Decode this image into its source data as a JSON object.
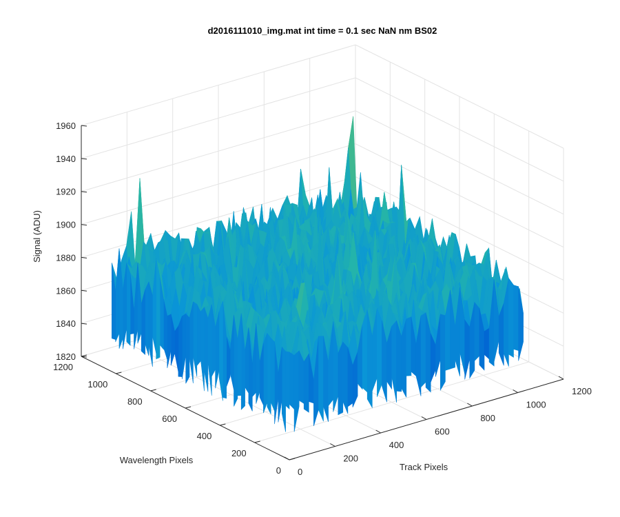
{
  "chart_data": {
    "type": "surface",
    "title": "d2016111010_img.mat int time = 0.1 sec  NaN nm BS02",
    "xlabel": "Track Pixels",
    "ylabel": "Wavelength Pixels",
    "zlabel": "Signal (ADU)",
    "xlim": [
      0,
      1200
    ],
    "ylim": [
      0,
      1200
    ],
    "zlim": [
      1820,
      1960
    ],
    "xticks": [
      "0",
      "200",
      "400",
      "600",
      "800",
      "1000",
      "1200"
    ],
    "yticks": [
      "0",
      "200",
      "400",
      "600",
      "800",
      "1000",
      "1200"
    ],
    "zticks": [
      "1820",
      "1840",
      "1860",
      "1880",
      "1900",
      "1920",
      "1940",
      "1960"
    ],
    "grid": true,
    "colormap": "parula",
    "surface_extent": {
      "x": [
        0,
        1024
      ],
      "y": [
        0,
        1024
      ]
    },
    "surface_baseline": 1880,
    "surface_noise_range": [
      1835,
      1945
    ],
    "colors": {
      "low": "#0072bd",
      "mid": "#1fb5b0",
      "high": "#e6c83a"
    }
  }
}
